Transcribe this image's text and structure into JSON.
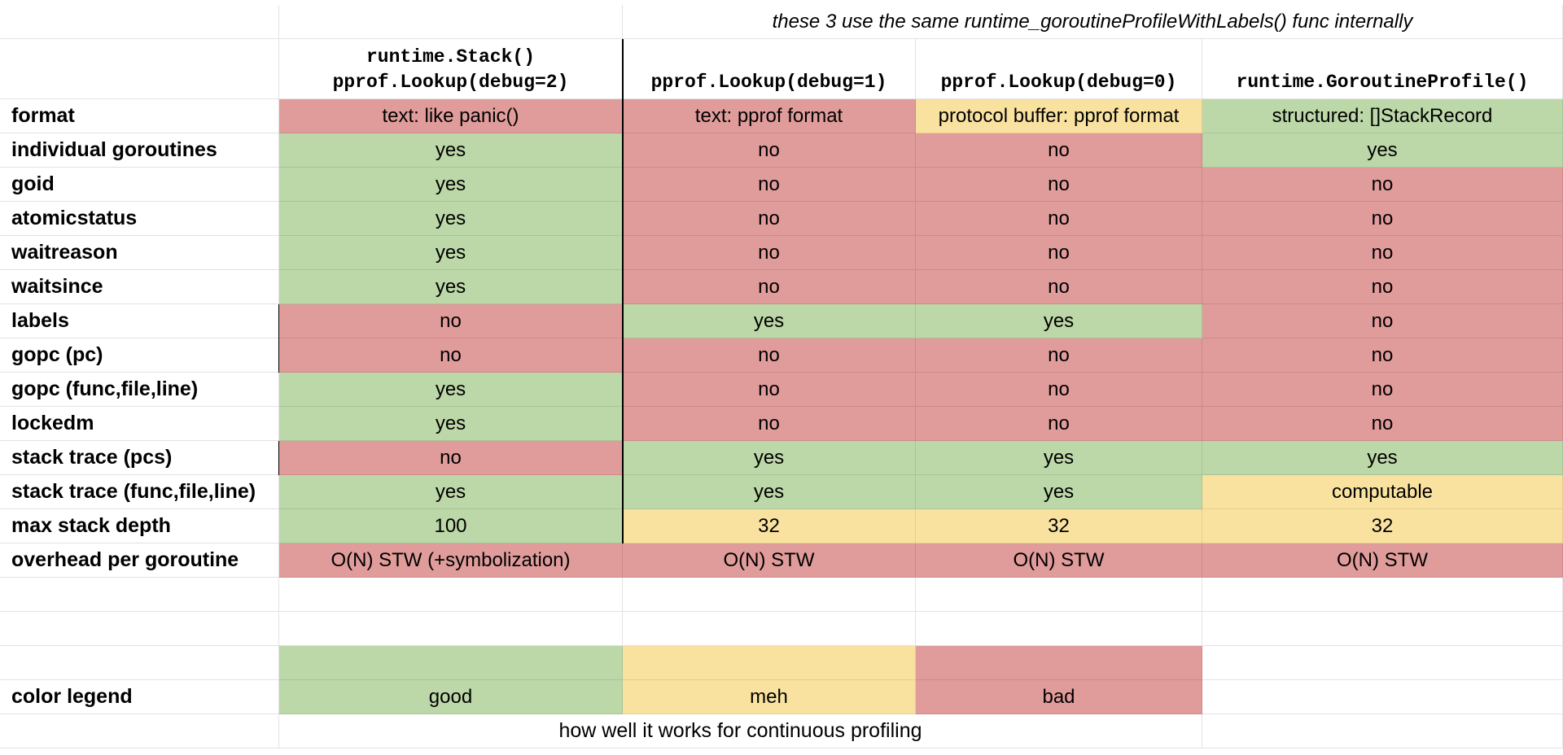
{
  "note": "these 3 use the same runtime_goroutineProfileWithLabels() func internally",
  "columns": [
    "runtime.Stack()\npprof.Lookup(debug=2)",
    "pprof.Lookup(debug=1)",
    "pprof.Lookup(debug=0)",
    "runtime.GoroutineProfile()"
  ],
  "rows": [
    {
      "label": "format",
      "cells": [
        {
          "text": "text: like panic()",
          "status": "bad"
        },
        {
          "text": "text: pprof format",
          "status": "bad"
        },
        {
          "text": "protocol buffer: pprof format",
          "status": "meh"
        },
        {
          "text": "structured: []StackRecord",
          "status": "good"
        }
      ]
    },
    {
      "label": "individual goroutines",
      "cells": [
        {
          "text": "yes",
          "status": "good"
        },
        {
          "text": "no",
          "status": "bad"
        },
        {
          "text": "no",
          "status": "bad"
        },
        {
          "text": "yes",
          "status": "good"
        }
      ]
    },
    {
      "label": "goid",
      "cells": [
        {
          "text": "yes",
          "status": "good"
        },
        {
          "text": "no",
          "status": "bad"
        },
        {
          "text": "no",
          "status": "bad"
        },
        {
          "text": "no",
          "status": "bad"
        }
      ]
    },
    {
      "label": "atomicstatus",
      "cells": [
        {
          "text": "yes",
          "status": "good"
        },
        {
          "text": "no",
          "status": "bad"
        },
        {
          "text": "no",
          "status": "bad"
        },
        {
          "text": "no",
          "status": "bad"
        }
      ]
    },
    {
      "label": "waitreason",
      "cells": [
        {
          "text": "yes",
          "status": "good"
        },
        {
          "text": "no",
          "status": "bad"
        },
        {
          "text": "no",
          "status": "bad"
        },
        {
          "text": "no",
          "status": "bad"
        }
      ]
    },
    {
      "label": "waitsince",
      "cells": [
        {
          "text": "yes",
          "status": "good"
        },
        {
          "text": "no",
          "status": "bad"
        },
        {
          "text": "no",
          "status": "bad"
        },
        {
          "text": "no",
          "status": "bad"
        }
      ]
    },
    {
      "label": "labels",
      "cells": [
        {
          "text": "no",
          "status": "bad"
        },
        {
          "text": "yes",
          "status": "good"
        },
        {
          "text": "yes",
          "status": "good"
        },
        {
          "text": "no",
          "status": "bad"
        }
      ]
    },
    {
      "label": "gopc (pc)",
      "cells": [
        {
          "text": "no",
          "status": "bad"
        },
        {
          "text": "no",
          "status": "bad"
        },
        {
          "text": "no",
          "status": "bad"
        },
        {
          "text": "no",
          "status": "bad"
        }
      ]
    },
    {
      "label": "gopc (func,file,line)",
      "cells": [
        {
          "text": "yes",
          "status": "good"
        },
        {
          "text": "no",
          "status": "bad"
        },
        {
          "text": "no",
          "status": "bad"
        },
        {
          "text": "no",
          "status": "bad"
        }
      ]
    },
    {
      "label": "lockedm",
      "cells": [
        {
          "text": "yes",
          "status": "good"
        },
        {
          "text": "no",
          "status": "bad"
        },
        {
          "text": "no",
          "status": "bad"
        },
        {
          "text": "no",
          "status": "bad"
        }
      ]
    },
    {
      "label": "stack trace (pcs)",
      "cells": [
        {
          "text": "no",
          "status": "bad"
        },
        {
          "text": "yes",
          "status": "good"
        },
        {
          "text": "yes",
          "status": "good"
        },
        {
          "text": "yes",
          "status": "good"
        }
      ]
    },
    {
      "label": "stack trace (func,file,line)",
      "cells": [
        {
          "text": "yes",
          "status": "good"
        },
        {
          "text": "yes",
          "status": "good"
        },
        {
          "text": "yes",
          "status": "good"
        },
        {
          "text": "computable",
          "status": "meh"
        }
      ]
    },
    {
      "label": "max stack depth",
      "cells": [
        {
          "text": "100",
          "status": "good"
        },
        {
          "text": "32",
          "status": "meh"
        },
        {
          "text": "32",
          "status": "meh"
        },
        {
          "text": "32",
          "status": "meh"
        }
      ]
    },
    {
      "label": "overhead per goroutine",
      "cells": [
        {
          "text": "O(N) STW (+symbolization)",
          "status": "bad"
        },
        {
          "text": "O(N) STW",
          "status": "bad"
        },
        {
          "text": "O(N) STW",
          "status": "bad"
        },
        {
          "text": "O(N) STW",
          "status": "bad"
        }
      ]
    }
  ],
  "legend": {
    "label": "color legend",
    "items": [
      {
        "text": "good",
        "status": "good"
      },
      {
        "text": "meh",
        "status": "meh"
      },
      {
        "text": "bad",
        "status": "bad"
      }
    ],
    "caption": "how well it works for continuous profiling"
  },
  "colors": {
    "good": "#bcd7a8",
    "meh": "#f9e2a0",
    "bad": "#e09c9b",
    "grid": "#e2e2e2"
  }
}
